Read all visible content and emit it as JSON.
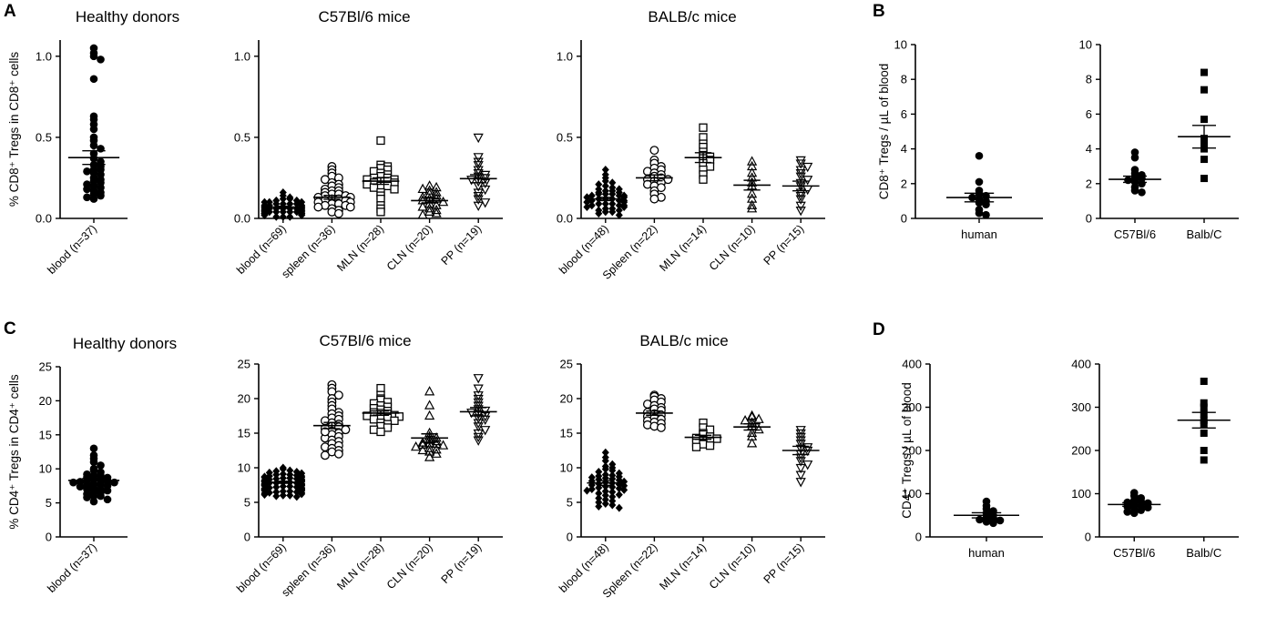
{
  "figure": {
    "panel_letters": [
      "A",
      "B",
      "C",
      "D"
    ]
  },
  "chart_data": [
    {
      "id": "A1",
      "type": "scatter",
      "title": "Healthy donors",
      "ylabel": "% CD8⁺ Tregs in CD8⁺ cells",
      "ylim": [
        0,
        1.1
      ],
      "yticks": [
        0.0,
        0.5,
        1.0
      ],
      "yticklabels": [
        "0.0",
        "0.5",
        "1.0"
      ],
      "categories": [
        "blood (n=37)"
      ],
      "markers": [
        "circle"
      ],
      "values": [
        [
          1.05,
          1.02,
          1.0,
          0.98,
          0.86,
          0.63,
          0.61,
          0.58,
          0.55,
          0.5,
          0.48,
          0.45,
          0.43,
          0.4,
          0.37,
          0.35,
          0.33,
          0.32,
          0.3,
          0.3,
          0.29,
          0.28,
          0.27,
          0.25,
          0.24,
          0.23,
          0.22,
          0.21,
          0.2,
          0.19,
          0.18,
          0.17,
          0.16,
          0.15,
          0.14,
          0.13,
          0.12
        ]
      ],
      "mean": [
        0.375
      ],
      "sem": [
        0.042
      ]
    },
    {
      "id": "A2",
      "type": "scatter",
      "title": "C57Bl/6 mice",
      "ylim": [
        0,
        1.1
      ],
      "yticks": [
        0.0,
        0.5,
        1.0
      ],
      "yticklabels": [
        "0.0",
        "0.5",
        "1.0"
      ],
      "categories": [
        "blood (n=69)",
        "spleen (n=36)",
        "MLN (n=28)",
        "CLN (n=20)",
        "PP (n=19)"
      ],
      "markers": [
        "diamond",
        "circle",
        "square",
        "triangle-up",
        "triangle-down"
      ],
      "values": [
        [
          0.16,
          0.14,
          0.13,
          0.12,
          0.12,
          0.11,
          0.11,
          0.1,
          0.1,
          0.1,
          0.09,
          0.09,
          0.09,
          0.09,
          0.08,
          0.08,
          0.08,
          0.08,
          0.08,
          0.07,
          0.07,
          0.07,
          0.07,
          0.07,
          0.07,
          0.07,
          0.06,
          0.06,
          0.06,
          0.06,
          0.06,
          0.06,
          0.06,
          0.06,
          0.05,
          0.05,
          0.05,
          0.05,
          0.05,
          0.05,
          0.05,
          0.05,
          0.05,
          0.04,
          0.04,
          0.04,
          0.04,
          0.04,
          0.04,
          0.04,
          0.04,
          0.04,
          0.03,
          0.03,
          0.03,
          0.03,
          0.03,
          0.03,
          0.03,
          0.03,
          0.02,
          0.02,
          0.02,
          0.02,
          0.02,
          0.02,
          0.01,
          0.01,
          0.01
        ],
        [
          0.32,
          0.3,
          0.28,
          0.26,
          0.25,
          0.24,
          0.22,
          0.21,
          0.2,
          0.19,
          0.18,
          0.17,
          0.17,
          0.16,
          0.15,
          0.15,
          0.14,
          0.14,
          0.13,
          0.13,
          0.12,
          0.12,
          0.11,
          0.11,
          0.1,
          0.1,
          0.09,
          0.09,
          0.08,
          0.08,
          0.07,
          0.07,
          0.06,
          0.05,
          0.04,
          0.03
        ],
        [
          0.48,
          0.33,
          0.32,
          0.31,
          0.3,
          0.29,
          0.28,
          0.27,
          0.26,
          0.25,
          0.25,
          0.24,
          0.24,
          0.23,
          0.23,
          0.22,
          0.22,
          0.21,
          0.2,
          0.2,
          0.19,
          0.18,
          0.16,
          0.14,
          0.12,
          0.08,
          0.06,
          0.04
        ],
        [
          0.2,
          0.19,
          0.18,
          0.17,
          0.16,
          0.15,
          0.14,
          0.13,
          0.12,
          0.12,
          0.11,
          0.1,
          0.09,
          0.08,
          0.07,
          0.06,
          0.05,
          0.04,
          0.03,
          0.02
        ],
        [
          0.5,
          0.38,
          0.35,
          0.33,
          0.3,
          0.28,
          0.27,
          0.26,
          0.25,
          0.24,
          0.23,
          0.22,
          0.2,
          0.18,
          0.16,
          0.14,
          0.12,
          0.1,
          0.08
        ]
      ],
      "mean": [
        0.07,
        0.13,
        0.23,
        0.11,
        0.245
      ],
      "sem": [
        0.005,
        0.012,
        0.02,
        0.015,
        0.025
      ]
    },
    {
      "id": "A3",
      "type": "scatter",
      "title": "BALB/c mice",
      "ylim": [
        0,
        1.1
      ],
      "yticks": [
        0.0,
        0.5,
        1.0
      ],
      "yticklabels": [
        "0.0",
        "0.5",
        "1.0"
      ],
      "categories": [
        "blood (n=48)",
        "Spleen (n=22)",
        "MLN (n=14)",
        "CLN (n=10)",
        "PP (n=15)"
      ],
      "markers": [
        "diamond",
        "circle",
        "square",
        "triangle-up",
        "triangle-down"
      ],
      "values": [
        [
          0.3,
          0.27,
          0.25,
          0.23,
          0.22,
          0.21,
          0.2,
          0.19,
          0.18,
          0.18,
          0.17,
          0.17,
          0.16,
          0.16,
          0.15,
          0.15,
          0.15,
          0.14,
          0.14,
          0.14,
          0.13,
          0.13,
          0.13,
          0.12,
          0.12,
          0.12,
          0.11,
          0.11,
          0.11,
          0.1,
          0.1,
          0.1,
          0.09,
          0.09,
          0.09,
          0.08,
          0.08,
          0.08,
          0.07,
          0.07,
          0.06,
          0.06,
          0.05,
          0.05,
          0.04,
          0.04,
          0.03,
          0.02
        ],
        [
          0.42,
          0.36,
          0.34,
          0.32,
          0.31,
          0.3,
          0.29,
          0.28,
          0.27,
          0.26,
          0.25,
          0.24,
          0.24,
          0.23,
          0.22,
          0.21,
          0.2,
          0.19,
          0.17,
          0.15,
          0.13,
          0.12
        ],
        [
          0.56,
          0.5,
          0.46,
          0.44,
          0.41,
          0.39,
          0.38,
          0.37,
          0.36,
          0.34,
          0.32,
          0.3,
          0.27,
          0.24
        ],
        [
          0.35,
          0.32,
          0.28,
          0.25,
          0.22,
          0.2,
          0.15,
          0.12,
          0.08,
          0.06
        ],
        [
          0.36,
          0.34,
          0.32,
          0.3,
          0.28,
          0.26,
          0.24,
          0.22,
          0.2,
          0.18,
          0.16,
          0.14,
          0.12,
          0.08,
          0.05
        ]
      ],
      "mean": [
        0.12,
        0.25,
        0.375,
        0.205,
        0.2
      ],
      "sem": [
        0.01,
        0.018,
        0.03,
        0.03,
        0.03
      ]
    },
    {
      "id": "B1",
      "type": "scatter",
      "ylabel": "CD8⁺ Tregs / µL of blood",
      "ylim": [
        0,
        10
      ],
      "yticks": [
        0,
        2,
        4,
        6,
        8,
        10
      ],
      "yticklabels": [
        "0",
        "2",
        "4",
        "6",
        "8",
        "10"
      ],
      "categories": [
        "human"
      ],
      "markers": [
        "circle"
      ],
      "values": [
        [
          3.6,
          2.1,
          1.6,
          1.4,
          1.3,
          1.2,
          1.1,
          1.0,
          0.9,
          0.8,
          0.5,
          0.3,
          0.2
        ]
      ],
      "mean": [
        1.2
      ],
      "sem": [
        0.25
      ]
    },
    {
      "id": "B2",
      "type": "scatter",
      "ylim": [
        0,
        10
      ],
      "yticks": [
        0,
        2,
        4,
        6,
        8,
        10
      ],
      "yticklabels": [
        "0",
        "2",
        "4",
        "6",
        "8",
        "10"
      ],
      "categories": [
        "C57Bl/6",
        "Balb/C"
      ],
      "markers": [
        "circle",
        "square"
      ],
      "values": [
        [
          3.8,
          3.5,
          2.8,
          2.6,
          2.5,
          2.4,
          2.3,
          2.2,
          2.1,
          2.0,
          1.8,
          1.6,
          1.5
        ],
        [
          8.4,
          7.4,
          5.7,
          4.6,
          4.4,
          4.0,
          3.4,
          2.3
        ]
      ],
      "mean": [
        2.25,
        4.7
      ],
      "sem": [
        0.18,
        0.65
      ]
    },
    {
      "id": "C1",
      "type": "scatter",
      "title": "Healthy donors",
      "ylabel": "% CD4⁺ Tregs in CD4⁺ cells",
      "ylim": [
        0,
        25
      ],
      "yticks": [
        0,
        5,
        10,
        15,
        20,
        25
      ],
      "yticklabels": [
        "0",
        "5",
        "10",
        "15",
        "20",
        "25"
      ],
      "categories": [
        "blood (n=37)"
      ],
      "markers": [
        "circle"
      ],
      "values": [
        [
          13.0,
          12.0,
          11.5,
          11.0,
          10.5,
          10.0,
          9.8,
          9.5,
          9.2,
          9.0,
          9.0,
          8.8,
          8.7,
          8.5,
          8.4,
          8.3,
          8.2,
          8.1,
          8.0,
          8.0,
          7.8,
          7.7,
          7.6,
          7.5,
          7.4,
          7.2,
          7.0,
          7.0,
          6.8,
          6.6,
          6.5,
          6.3,
          6.0,
          6.0,
          5.8,
          5.5,
          5.2
        ]
      ],
      "mean": [
        8.3
      ],
      "sem": [
        0.3
      ]
    },
    {
      "id": "C2",
      "type": "scatter",
      "title": "C57Bl/6 mice",
      "ylim": [
        0,
        25
      ],
      "yticks": [
        0,
        5,
        10,
        15,
        20,
        25
      ],
      "yticklabels": [
        "0",
        "5",
        "10",
        "15",
        "20",
        "25"
      ],
      "categories": [
        "blood (n=69)",
        "spleen (n=36)",
        "MLN (n=28)",
        "CLN (n=20)",
        "PP (n=19)"
      ],
      "markers": [
        "diamond",
        "circle",
        "square",
        "triangle-up",
        "triangle-down"
      ],
      "values": [
        [
          10.0,
          9.8,
          9.6,
          9.5,
          9.4,
          9.3,
          9.2,
          9.1,
          9.0,
          9.0,
          8.9,
          8.8,
          8.8,
          8.7,
          8.6,
          8.6,
          8.5,
          8.5,
          8.4,
          8.4,
          8.3,
          8.3,
          8.2,
          8.2,
          8.1,
          8.1,
          8.0,
          8.0,
          8.0,
          7.9,
          7.9,
          7.8,
          7.8,
          7.8,
          7.7,
          7.7,
          7.6,
          7.6,
          7.5,
          7.5,
          7.4,
          7.4,
          7.3,
          7.3,
          7.2,
          7.2,
          7.1,
          7.1,
          7.0,
          7.0,
          6.9,
          6.9,
          6.8,
          6.8,
          6.7,
          6.7,
          6.6,
          6.6,
          6.5,
          6.5,
          6.4,
          6.4,
          6.3,
          6.2,
          6.1,
          6.0,
          6.0,
          5.9,
          5.8
        ],
        [
          22.0,
          21.5,
          21.0,
          20.5,
          20.0,
          19.5,
          19.0,
          18.5,
          18.0,
          17.8,
          17.5,
          17.2,
          17.0,
          16.8,
          16.5,
          16.3,
          16.0,
          15.9,
          15.7,
          15.5,
          15.3,
          15.0,
          14.8,
          14.5,
          14.3,
          14.0,
          13.8,
          13.5,
          13.2,
          13.0,
          12.8,
          12.5,
          12.3,
          12.0,
          11.8,
          15.2
        ],
        [
          21.5,
          20.5,
          20.0,
          19.8,
          19.5,
          19.3,
          19.0,
          18.8,
          18.6,
          18.4,
          18.2,
          18.0,
          17.9,
          17.8,
          17.7,
          17.6,
          17.5,
          17.4,
          17.3,
          17.2,
          17.0,
          16.8,
          16.5,
          16.3,
          16.0,
          15.8,
          15.5,
          15.2
        ],
        [
          21.0,
          19.0,
          17.5,
          15.0,
          14.5,
          14.3,
          14.0,
          13.8,
          13.6,
          13.5,
          13.4,
          13.3,
          13.2,
          13.0,
          12.8,
          12.6,
          12.5,
          12.3,
          12.0,
          11.5
        ],
        [
          23.0,
          21.5,
          20.5,
          20.0,
          19.5,
          19.0,
          18.5,
          18.3,
          18.0,
          17.8,
          17.5,
          17.2,
          17.0,
          16.5,
          16.0,
          15.5,
          15.0,
          14.5,
          14.0
        ]
      ],
      "mean": [
        7.9,
        16.1,
        17.9,
        14.3,
        18.1
      ],
      "sem": [
        0.15,
        0.45,
        0.3,
        0.6,
        0.6
      ]
    },
    {
      "id": "C3",
      "type": "scatter",
      "title": "BALB/c mice",
      "ylim": [
        0,
        25
      ],
      "yticks": [
        0,
        5,
        10,
        15,
        20,
        25
      ],
      "yticklabels": [
        "0",
        "5",
        "10",
        "15",
        "20",
        "25"
      ],
      "categories": [
        "blood (n=48)",
        "Spleen (n=22)",
        "MLN (n=14)",
        "CLN (n=10)",
        "PP (n=15)"
      ],
      "markers": [
        "diamond",
        "circle",
        "square",
        "triangle-up",
        "triangle-down"
      ],
      "values": [
        [
          12.2,
          11.5,
          11.0,
          10.5,
          10.2,
          10.0,
          9.8,
          9.6,
          9.4,
          9.2,
          9.0,
          8.9,
          8.8,
          8.7,
          8.6,
          8.5,
          8.4,
          8.3,
          8.2,
          8.1,
          8.0,
          7.9,
          7.8,
          7.7,
          7.6,
          7.5,
          7.4,
          7.3,
          7.2,
          7.1,
          7.0,
          6.9,
          6.8,
          6.7,
          6.6,
          6.5,
          6.3,
          6.1,
          6.0,
          5.8,
          5.6,
          5.4,
          5.2,
          5.0,
          4.8,
          4.6,
          4.4,
          4.2
        ],
        [
          20.5,
          20.3,
          20.0,
          19.8,
          19.5,
          19.2,
          19.0,
          18.7,
          18.5,
          18.3,
          18.0,
          17.8,
          17.6,
          17.4,
          17.2,
          17.0,
          16.8,
          16.6,
          16.4,
          16.2,
          16.0,
          15.8
        ],
        [
          16.5,
          15.8,
          15.5,
          15.0,
          14.8,
          14.5,
          14.3,
          14.2,
          14.0,
          13.8,
          13.6,
          13.4,
          13.2,
          13.0
        ],
        [
          17.5,
          17.3,
          17.0,
          16.8,
          16.5,
          16.0,
          15.5,
          15.0,
          14.5,
          13.5
        ],
        [
          15.5,
          15.0,
          14.5,
          14.0,
          13.5,
          13.0,
          12.8,
          12.5,
          12.0,
          11.5,
          11.0,
          10.5,
          10.0,
          9.0,
          8.0
        ]
      ],
      "mean": [
        7.8,
        17.9,
        14.4,
        15.9,
        12.5
      ],
      "sem": [
        0.35,
        0.3,
        0.3,
        0.45,
        0.6
      ]
    },
    {
      "id": "D1",
      "type": "scatter",
      "ylabel": "CD4⁺ Tregs / µL of blood",
      "ylim": [
        0,
        400
      ],
      "yticks": [
        0,
        100,
        200,
        300,
        400
      ],
      "yticklabels": [
        "0",
        "100",
        "200",
        "300",
        "400"
      ],
      "categories": [
        "human"
      ],
      "markers": [
        "circle"
      ],
      "values": [
        [
          82,
          72,
          65,
          60,
          55,
          50,
          45,
          42,
          40,
          38,
          35,
          32
        ]
      ],
      "mean": [
        50
      ],
      "sem": [
        6
      ]
    },
    {
      "id": "D2",
      "type": "scatter",
      "ylim": [
        0,
        400
      ],
      "yticks": [
        0,
        100,
        200,
        300,
        400
      ],
      "yticklabels": [
        "0",
        "100",
        "200",
        "300",
        "400"
      ],
      "categories": [
        "C57Bl/6",
        "Balb/C"
      ],
      "markers": [
        "circle",
        "square"
      ],
      "values": [
        [
          102,
          95,
          90,
          85,
          82,
          80,
          78,
          75,
          72,
          70,
          68,
          65,
          62,
          58,
          55
        ],
        [
          360,
          310,
          300,
          285,
          270,
          260,
          240,
          200,
          178
        ]
      ],
      "mean": [
        75,
        270
      ],
      "sem": [
        4,
        18
      ]
    }
  ]
}
